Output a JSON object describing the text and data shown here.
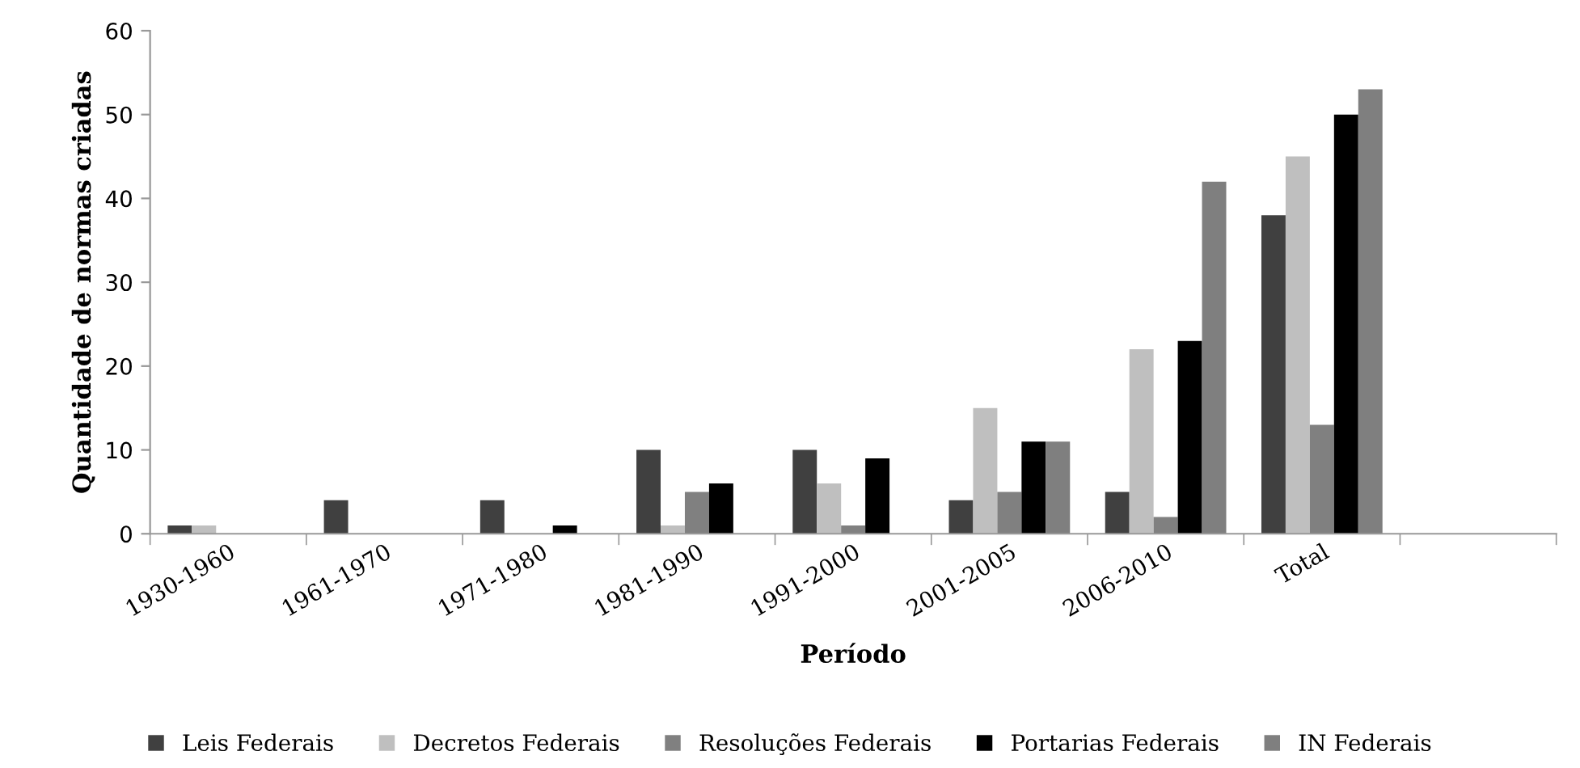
{
  "chart_data": {
    "type": "bar",
    "xlabel": "Período",
    "ylabel": "Quantidade de normas criadas",
    "categories": [
      "1930-1960",
      "1961-1970",
      "1971-1980",
      "1981-1990",
      "1991-2000",
      "2001-2005",
      "2006-2010",
      "Total",
      null
    ],
    "series": [
      {
        "name": "Leis Federais",
        "color": "#404040",
        "values": [
          1,
          4,
          4,
          10,
          10,
          4,
          5,
          38,
          null
        ]
      },
      {
        "name": "Decretos Federais",
        "color": "#bfbfbf",
        "values": [
          1,
          0,
          0,
          1,
          6,
          15,
          22,
          45,
          null
        ]
      },
      {
        "name": "Resoluções Federais",
        "color": "#808080",
        "values": [
          0,
          0,
          0,
          5,
          1,
          5,
          2,
          13,
          null
        ]
      },
      {
        "name": "Portarias Federais",
        "color": "#000000",
        "values": [
          0,
          0,
          1,
          6,
          9,
          11,
          23,
          50,
          null
        ]
      },
      {
        "name": "IN Federais",
        "color": "#7f7f7f",
        "values": [
          0,
          0,
          0,
          0,
          0,
          11,
          42,
          53,
          null
        ]
      }
    ],
    "ylim": [
      0,
      60
    ],
    "yticks": [
      0,
      10,
      20,
      30,
      40,
      50,
      60
    ],
    "grid": false,
    "legend": "bottom"
  }
}
